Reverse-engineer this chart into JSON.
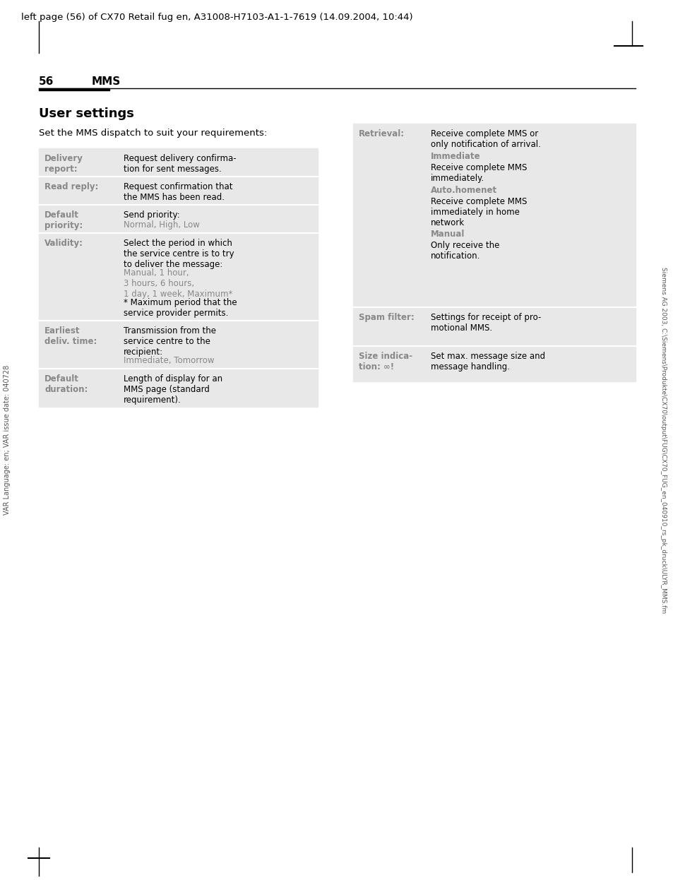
{
  "page_header": "left page (56) of CX70 Retail fug en, A31008-H7103-A1-1-7619 (14.09.2004, 10:44)",
  "page_number": "56",
  "section_title": "MMS",
  "content_title": "User settings",
  "content_intro": "Set the MMS dispatch to suit your requirements:",
  "left_table": [
    {
      "label": "Delivery\nreport:",
      "text": "Request delivery confirma-\ntion for sent messages.",
      "subtext": null,
      "subtext_color": null
    },
    {
      "label": "Read reply:",
      "text": "Request confirmation that\nthe MMS has been read.",
      "subtext": null,
      "subtext_color": null
    },
    {
      "label": "Default\npriority:",
      "text": "Send priority:",
      "subtext": "Normal, High, Low",
      "subtext_color": "#888888"
    },
    {
      "label": "Validity:",
      "text": "Select the period in which\nthe service centre is to try\nto deliver the message:",
      "subtext": "Manual, 1 hour,\n3 hours, 6 hours,\n1 day, 1 week, Maximum*\n* Maximum period that the\nservice provider permits.",
      "subtext_color": "#888888",
      "subtext_mixed": true
    },
    {
      "label": "Earliest\ndeliv. time:",
      "text": "Transmission from the\nservice centre to the\nrecipient:",
      "subtext": "Immediate, Tomorrow",
      "subtext_color": "#888888"
    },
    {
      "label": "Default\nduration:",
      "text": "Length of display for an\nMMS page (standard\nrequirement).",
      "subtext": null,
      "subtext_color": null
    }
  ],
  "right_table": [
    {
      "label": "Retrieval:",
      "text": "Receive complete MMS or\nonly notification of arrival.",
      "subtext": "Immediate",
      "subtext_color": "#888888",
      "sub2text": "Receive complete MMS\nimmediately.",
      "sub3text": "Auto.homenet",
      "sub3text_color": "#888888",
      "sub4text": "Receive complete MMS\nimmediately in home\nnetwork",
      "sub5text": "Manual",
      "sub5text_color": "#888888",
      "sub6text": "Only receive the\nnotification."
    },
    {
      "label": "Spam filter:",
      "text": "Settings for receipt of pro-\nmotional MMS.",
      "subtext": null,
      "subtext_color": null
    },
    {
      "label": "Size indica-\ntion: ∞!",
      "text": "Set max. message size and\nmessage handling.",
      "subtext": null,
      "subtext_color": null
    }
  ],
  "side_text_left": "VAR Language: en; VAR issue date: 040728",
  "side_text_right": "Siemens AG 2003, C:\\Siemens\\Produkte\\CX70\\output\\FUG\\CX70_FUG_en_040910_rs_pk_druck\\ULYR_MMS.fm",
  "bg_color": "#ffffff",
  "table_bg_color": "#e8e8e8",
  "label_color": "#888888",
  "header_line_full": "#000000",
  "header_line_short": "#000000"
}
